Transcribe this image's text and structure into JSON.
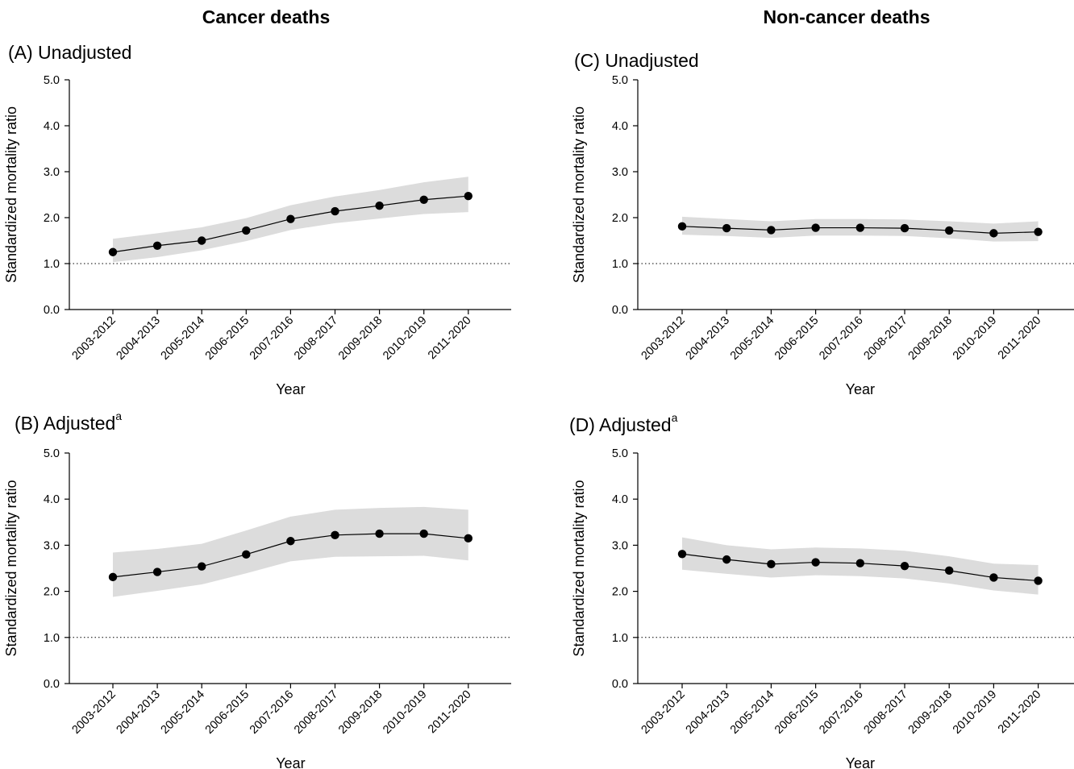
{
  "columns": {
    "left": "Cancer deaths",
    "right": "Non-cancer deaths"
  },
  "axis": {
    "ylabel": "Standardized mortality ratio",
    "xlabel": "Year",
    "yticks": [
      "0.0",
      "1.0",
      "2.0",
      "3.0",
      "4.0",
      "5.0"
    ],
    "ylim": [
      0,
      5
    ],
    "reference_line": 1.0
  },
  "colors": {
    "ci_band": "#dcdcdc",
    "line": "#000000",
    "marker": "#000000"
  },
  "chart_data": [
    {
      "type": "line",
      "panel": "A",
      "title": "(A) Unadjusted",
      "title_sup": "",
      "categories": [
        "2003-2012",
        "2004-2013",
        "2005-2014",
        "2006-2015",
        "2007-2016",
        "2008-2017",
        "2009-2018",
        "2010-2019",
        "2011-2020"
      ],
      "values": [
        1.25,
        1.39,
        1.5,
        1.72,
        1.97,
        2.14,
        2.26,
        2.39,
        2.47
      ],
      "lower": [
        1.03,
        1.14,
        1.29,
        1.49,
        1.73,
        1.88,
        1.98,
        2.08,
        2.12
      ],
      "upper": [
        1.54,
        1.66,
        1.79,
        1.99,
        2.27,
        2.46,
        2.6,
        2.77,
        2.89
      ]
    },
    {
      "type": "line",
      "panel": "B",
      "title": "(B) Adjusted",
      "title_sup": "a",
      "categories": [
        "2003-2012",
        "2004-2013",
        "2005-2014",
        "2006-2015",
        "2007-2016",
        "2008-2017",
        "2009-2018",
        "2010-2019",
        "2011-2020"
      ],
      "values": [
        2.31,
        2.42,
        2.54,
        2.8,
        3.09,
        3.22,
        3.25,
        3.25,
        3.15
      ],
      "lower": [
        1.88,
        2.01,
        2.15,
        2.39,
        2.65,
        2.75,
        2.76,
        2.77,
        2.67
      ],
      "upper": [
        2.84,
        2.92,
        3.03,
        3.32,
        3.62,
        3.77,
        3.81,
        3.83,
        3.77
      ]
    },
    {
      "type": "line",
      "panel": "C",
      "title": "(C) Unadjusted",
      "title_sup": "",
      "categories": [
        "2003-2012",
        "2004-2013",
        "2005-2014",
        "2006-2015",
        "2007-2016",
        "2008-2017",
        "2009-2018",
        "2010-2019",
        "2011-2020"
      ],
      "values": [
        1.81,
        1.77,
        1.73,
        1.78,
        1.78,
        1.77,
        1.72,
        1.66,
        1.69
      ],
      "lower": [
        1.63,
        1.6,
        1.56,
        1.61,
        1.61,
        1.6,
        1.55,
        1.48,
        1.49
      ],
      "upper": [
        2.02,
        1.97,
        1.92,
        1.97,
        1.97,
        1.96,
        1.92,
        1.87,
        1.92
      ]
    },
    {
      "type": "line",
      "panel": "D",
      "title": "(D) Adjusted",
      "title_sup": "a",
      "categories": [
        "2003-2012",
        "2004-2013",
        "2005-2014",
        "2006-2015",
        "2007-2016",
        "2008-2017",
        "2009-2018",
        "2010-2019",
        "2011-2020"
      ],
      "values": [
        2.81,
        2.69,
        2.59,
        2.63,
        2.61,
        2.55,
        2.45,
        2.3,
        2.23
      ],
      "lower": [
        2.47,
        2.38,
        2.3,
        2.35,
        2.33,
        2.28,
        2.17,
        2.02,
        1.93
      ],
      "upper": [
        3.17,
        3.0,
        2.91,
        2.95,
        2.93,
        2.88,
        2.76,
        2.6,
        2.57
      ]
    }
  ]
}
